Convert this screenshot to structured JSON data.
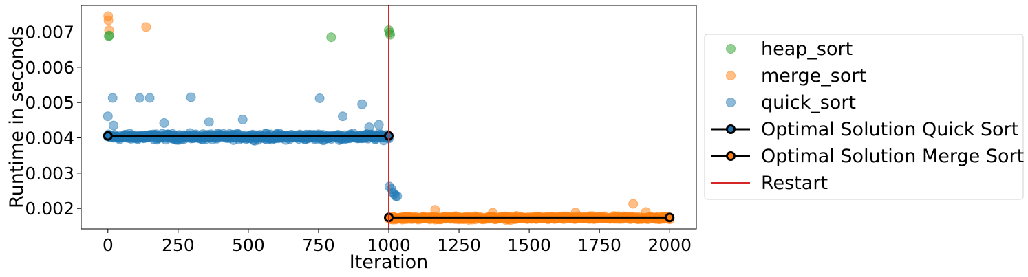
{
  "chart_data": {
    "type": "scatter",
    "title": "",
    "xlabel": "Iteration",
    "ylabel": "Runtime in seconds",
    "xlim": [
      -95,
      2095
    ],
    "ylim": [
      0.00142,
      0.00775
    ],
    "x_ticks": [
      0,
      250,
      500,
      750,
      1000,
      1250,
      1500,
      1750,
      2000
    ],
    "y_ticks": [
      0.002,
      0.003,
      0.004,
      0.005,
      0.006,
      0.007
    ],
    "x_tick_labels": [
      "0",
      "250",
      "500",
      "750",
      "1000",
      "1250",
      "1500",
      "1750",
      "2000"
    ],
    "y_tick_labels": [
      "0.002",
      "0.003",
      "0.004",
      "0.005",
      "0.006",
      "0.007"
    ],
    "grid": false,
    "legend_position": "right",
    "series": [
      {
        "name": "heap_sort",
        "kind": "scatter",
        "color": "#2ca02c",
        "points": [
          {
            "x": 3,
            "y": 0.00688
          },
          {
            "x": 5,
            "y": 0.0069
          },
          {
            "x": 795,
            "y": 0.00685
          },
          {
            "x": 1000,
            "y": 0.00705
          },
          {
            "x": 1003,
            "y": 0.00698
          },
          {
            "x": 1005,
            "y": 0.00692
          }
        ]
      },
      {
        "name": "merge_sort",
        "kind": "scatter",
        "color": "#ff7f0e",
        "points": [
          {
            "x": 1,
            "y": 0.00745
          },
          {
            "x": 2,
            "y": 0.00733
          },
          {
            "x": 4,
            "y": 0.00705
          },
          {
            "x": 136,
            "y": 0.00714
          }
        ],
        "cluster": {
          "x_from": 1000,
          "x_to": 2000,
          "y_center": 0.00173,
          "y_spread": 7e-05
        },
        "extra_points": [
          {
            "x": 1165,
            "y": 0.00196
          },
          {
            "x": 1370,
            "y": 0.00188
          },
          {
            "x": 1665,
            "y": 0.00188
          },
          {
            "x": 1870,
            "y": 0.00213
          },
          {
            "x": 1915,
            "y": 0.0019
          }
        ]
      },
      {
        "name": "quick_sort",
        "kind": "scatter",
        "color": "#1f77b4",
        "points": [
          {
            "x": 0,
            "y": 0.00461
          },
          {
            "x": 17,
            "y": 0.00513
          },
          {
            "x": 113,
            "y": 0.00513
          },
          {
            "x": 149,
            "y": 0.00513
          },
          {
            "x": 296,
            "y": 0.00515
          },
          {
            "x": 754,
            "y": 0.00512
          },
          {
            "x": 836,
            "y": 0.00461
          },
          {
            "x": 905,
            "y": 0.00495
          },
          {
            "x": 965,
            "y": 0.00437
          },
          {
            "x": 20,
            "y": 0.00435
          },
          {
            "x": 200,
            "y": 0.00442
          },
          {
            "x": 360,
            "y": 0.00445
          },
          {
            "x": 480,
            "y": 0.00452
          },
          {
            "x": 930,
            "y": 0.0043
          },
          {
            "x": 1002,
            "y": 0.00262
          },
          {
            "x": 1010,
            "y": 0.00255
          },
          {
            "x": 1015,
            "y": 0.00245
          },
          {
            "x": 1020,
            "y": 0.0024
          },
          {
            "x": 1025,
            "y": 0.00235
          },
          {
            "x": 1030,
            "y": 0.00235
          }
        ],
        "cluster": {
          "x_from": 0,
          "x_to": 1000,
          "y_center": 0.00403,
          "y_spread": 0.00012
        }
      },
      {
        "name": "Optimal Solution Quick Sort",
        "kind": "line",
        "color": "#000000",
        "marker_edge": "#000000",
        "marker_face": "#1f77b4",
        "points": [
          {
            "x": 0,
            "y": 0.004055
          },
          {
            "x": 1000,
            "y": 0.004055
          }
        ]
      },
      {
        "name": "Optimal Solution Merge Sort",
        "kind": "line",
        "color": "#000000",
        "marker_edge": "#000000",
        "marker_face": "#ff7f0e",
        "points": [
          {
            "x": 1000,
            "y": 0.001745
          },
          {
            "x": 2000,
            "y": 0.001745
          }
        ]
      },
      {
        "name": "Restart",
        "kind": "vline",
        "color": "#d62728",
        "x": 1000
      }
    ]
  }
}
